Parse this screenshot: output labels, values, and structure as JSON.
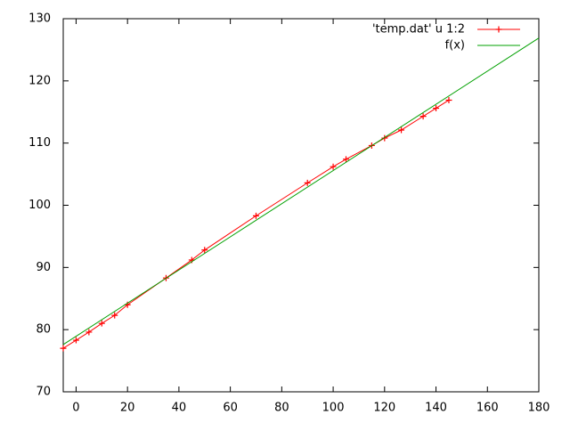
{
  "chart_data": {
    "type": "line",
    "series": [
      {
        "name": "'temp.dat' u 1:2",
        "color": "#ff0000",
        "marker": "+",
        "x": [
          -5,
          0,
          5,
          10,
          15,
          20,
          35,
          45,
          50,
          70,
          90,
          100,
          105,
          115,
          120,
          126.5,
          135,
          140,
          145
        ],
        "values": [
          77,
          78.3,
          79.6,
          81,
          82.3,
          84,
          88.3,
          91.2,
          92.8,
          98.3,
          103.6,
          106.2,
          107.4,
          109.6,
          110.8,
          112.1,
          114.3,
          115.6,
          116.9
        ]
      },
      {
        "name": "f(x)",
        "color": "#00a000",
        "x": [
          -5,
          180
        ],
        "values": [
          77.6,
          126.9
        ]
      }
    ],
    "xlim": [
      -5,
      180
    ],
    "xticks": [
      0,
      20,
      40,
      60,
      80,
      100,
      120,
      140,
      160,
      180
    ],
    "ylim": [
      70,
      130
    ],
    "yticks": [
      70,
      80,
      90,
      100,
      110,
      120,
      130
    ],
    "grid": false,
    "legend": "top-right"
  }
}
